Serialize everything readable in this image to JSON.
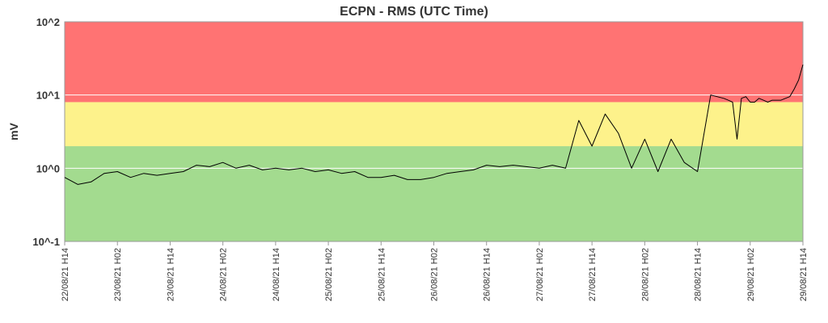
{
  "chart_data": {
    "type": "line",
    "title": "ECPN - RMS (UTC Time)",
    "xlabel": "",
    "ylabel": "mV",
    "y_scale": "log",
    "ylim": [
      0.1,
      100
    ],
    "xlim": [
      "22/08/21 H14",
      "29/08/21 H14"
    ],
    "y_tick_labels": [
      "10^2",
      "10^1",
      "10^0",
      "10^-1"
    ],
    "y_tick_values": [
      100,
      10,
      1,
      0.1
    ],
    "x_tick_labels": [
      "22/08/21 H14",
      "23/08/21 H02",
      "23/08/21 H14",
      "24/08/21 H02",
      "24/08/21 H14",
      "25/08/21 H02",
      "25/08/21 H14",
      "26/08/21 H02",
      "26/08/21 H14",
      "27/08/21 H02",
      "27/08/21 H14",
      "28/08/21 H02",
      "28/08/21 H14",
      "29/08/21 H02",
      "29/08/21 H14"
    ],
    "grid": {
      "horizontal": true,
      "vertical": false
    },
    "threshold_bands": [
      {
        "from": 0.1,
        "to": 2.0,
        "color": "#a3db8f"
      },
      {
        "from": 2.0,
        "to": 8.0,
        "color": "#fdf28b"
      },
      {
        "from": 8.0,
        "to": 100,
        "color": "#ff7373"
      }
    ],
    "series": [
      {
        "line_color": "#000000",
        "x_hours": [
          0,
          3,
          6,
          9,
          12,
          15,
          18,
          21,
          24,
          27,
          30,
          33,
          36,
          39,
          42,
          45,
          48,
          51,
          54,
          57,
          60,
          63,
          66,
          69,
          72,
          75,
          78,
          81,
          84,
          87,
          90,
          93,
          96,
          99,
          102,
          105,
          108,
          111,
          114,
          117,
          120,
          123,
          126,
          129,
          132,
          135,
          138,
          141,
          144,
          147,
          150,
          151,
          152,
          153,
          154,
          155,
          156,
          157,
          158,
          159,
          160,
          161,
          162,
          163,
          164,
          165,
          166,
          167,
          168
        ],
        "values": [
          0.75,
          0.6,
          0.65,
          0.85,
          0.9,
          0.75,
          0.85,
          0.8,
          0.85,
          0.9,
          1.1,
          1.05,
          1.2,
          1.0,
          1.1,
          0.95,
          1.0,
          0.95,
          1.0,
          0.9,
          0.95,
          0.85,
          0.9,
          0.75,
          0.75,
          0.8,
          0.7,
          0.7,
          0.75,
          0.85,
          0.9,
          0.95,
          1.1,
          1.05,
          1.1,
          1.05,
          1.0,
          1.1,
          1.0,
          4.5,
          2.0,
          5.5,
          3.0,
          1.0,
          2.5,
          0.9,
          2.5,
          1.2,
          0.9,
          10,
          9,
          8.5,
          8,
          2.5,
          9,
          9.5,
          8,
          8,
          9,
          8.5,
          8,
          8.5,
          8.5,
          8.5,
          9,
          9.5,
          12,
          16,
          26
        ]
      }
    ]
  }
}
